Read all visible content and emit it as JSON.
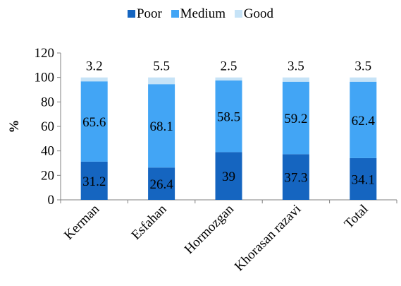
{
  "chart_data": {
    "type": "bar",
    "stacked": true,
    "categories": [
      "Kerman",
      "Esfahan",
      "Hormozgan",
      "Khorasan razavi",
      "Total"
    ],
    "series": [
      {
        "name": "Poor",
        "values": [
          31.2,
          26.4,
          39,
          37.3,
          34.1
        ],
        "color": "#1565C0"
      },
      {
        "name": "Medium",
        "values": [
          65.6,
          68.1,
          58.5,
          59.2,
          62.4
        ],
        "color": "#42A5F5"
      },
      {
        "name": "Good",
        "values": [
          3.2,
          5.5,
          2.5,
          3.5,
          3.5
        ],
        "color": "#C6E3F7"
      }
    ],
    "data_labels": [
      [
        "31.2",
        "26.4",
        "39",
        "37.3",
        "34.1"
      ],
      [
        "65.6",
        "68.1",
        "58.5",
        "59.2",
        "62.4"
      ],
      [
        "3.2",
        "5.5",
        "2.5",
        "3.5",
        "3.5"
      ]
    ],
    "title": "",
    "xlabel": "",
    "ylabel": "%",
    "ylim": [
      0,
      120
    ],
    "yticks": [
      "0",
      "20",
      "40",
      "60",
      "80",
      "100",
      "120"
    ],
    "grid": false,
    "legend_position": "top-center"
  }
}
